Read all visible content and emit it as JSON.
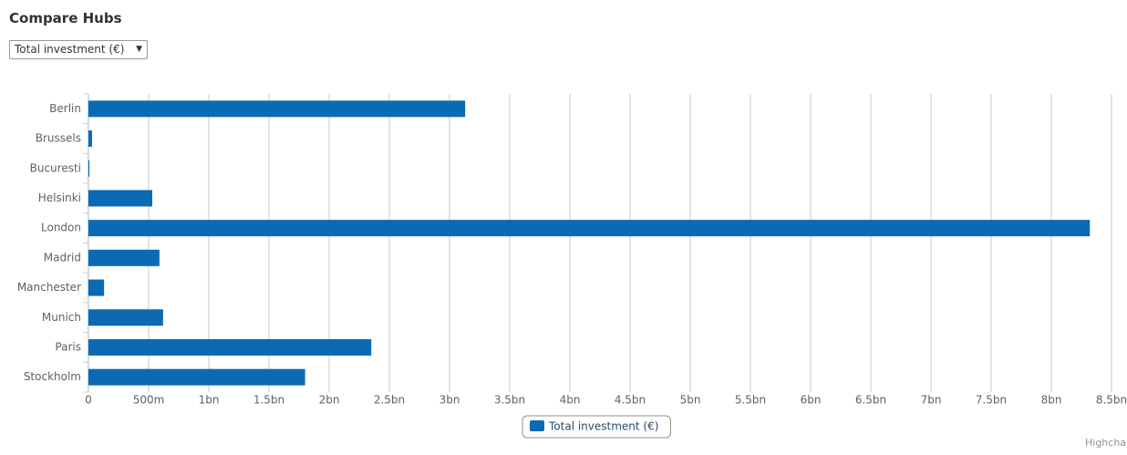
{
  "chart_data": {
    "type": "bar",
    "orientation": "horizontal",
    "title": "Compare Hubs",
    "selector": "Total investment (€)",
    "categories": [
      "Berlin",
      "Brussels",
      "Bucuresti",
      "Helsinki",
      "London",
      "Madrid",
      "Manchester",
      "Munich",
      "Paris",
      "Stockholm"
    ],
    "series": [
      {
        "name": "Total investment (€)",
        "color": "#0c6ab4",
        "values": [
          3130000000,
          30000000,
          8000000,
          530000000,
          8320000000,
          590000000,
          130000000,
          620000000,
          2350000000,
          1800000000
        ]
      }
    ],
    "xlim": [
      0,
      8500000000
    ],
    "xticks": [
      0,
      {
        "value": 500000000,
        "label": "500m"
      },
      {
        "value": 1000000000,
        "label": "1bn"
      },
      {
        "value": 1500000000,
        "label": "1.5bn"
      },
      {
        "value": 2000000000,
        "label": "2bn"
      },
      {
        "value": 2500000000,
        "label": "2.5bn"
      },
      {
        "value": 3000000000,
        "label": "3bn"
      },
      {
        "value": 3500000000,
        "label": "3.5bn"
      },
      {
        "value": 4000000000,
        "label": "4bn"
      },
      {
        "value": 4500000000,
        "label": "4.5bn"
      },
      {
        "value": 5000000000,
        "label": "5bn"
      },
      {
        "value": 5500000000,
        "label": "5.5bn"
      },
      {
        "value": 6000000000,
        "label": "6bn"
      },
      {
        "value": 6500000000,
        "label": "6.5bn"
      },
      {
        "value": 7000000000,
        "label": "7bn"
      },
      {
        "value": 7500000000,
        "label": "7.5bn"
      },
      {
        "value": 8000000000,
        "label": "8bn"
      },
      {
        "value": 8500000000,
        "label": "8.5bn"
      }
    ],
    "grid": true,
    "legend": "bottom",
    "credit": "Highcha"
  }
}
